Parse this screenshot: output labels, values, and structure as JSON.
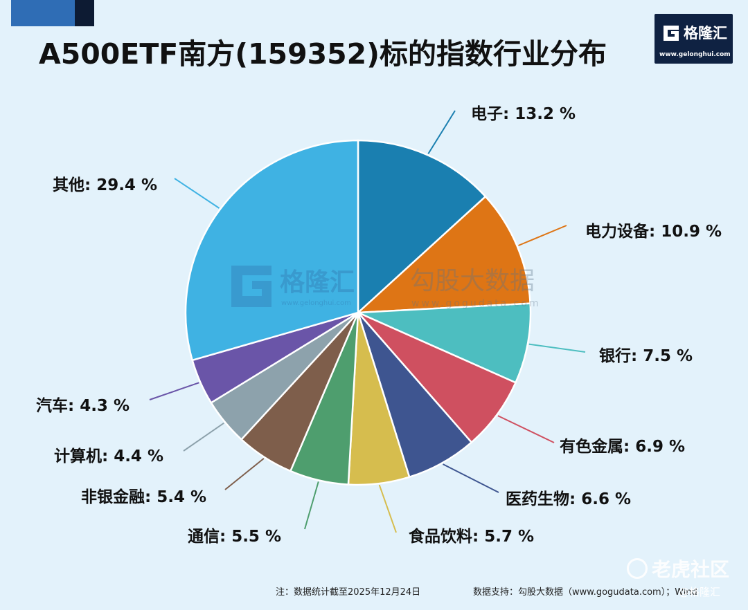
{
  "title": "A500ETF南方(159352)标的指数行业分布",
  "logo": {
    "name": "格隆汇",
    "url": "www.gelonghui.com"
  },
  "watermark": {
    "brand_a": "格隆汇",
    "brand_a_url": "www.gelonghui.com",
    "brand_b": "勾股大数据",
    "brand_b_url": "www.gogudata.com"
  },
  "footer": {
    "note": "注：数据统计截至2025年12月24日",
    "source": "数据支持：勾股大数据（www.gogudata.com）；Wind"
  },
  "badge": {
    "tiger": "老虎社区",
    "stamp": "@格隆汇"
  },
  "chart_data": {
    "type": "pie",
    "slices": [
      {
        "label": "电子",
        "value": 13.2,
        "display": "电子: 13.2 %",
        "color": "#1a7fb0"
      },
      {
        "label": "电力设备",
        "value": 10.9,
        "display": "电力设备: 10.9 %",
        "color": "#de7515"
      },
      {
        "label": "银行",
        "value": 7.5,
        "display": "银行: 7.5 %",
        "color": "#4dbec0"
      },
      {
        "label": "有色金属",
        "value": 6.9,
        "display": "有色金属: 6.9 %",
        "color": "#cf5060"
      },
      {
        "label": "医药生物",
        "value": 6.6,
        "display": "医药生物: 6.6 %",
        "color": "#3e5590"
      },
      {
        "label": "食品饮料",
        "value": 5.7,
        "display": "食品饮料: 5.7 %",
        "color": "#d6bd4e"
      },
      {
        "label": "通信",
        "value": 5.5,
        "display": "通信: 5.5 %",
        "color": "#4e9e6e"
      },
      {
        "label": "非银金融",
        "value": 5.4,
        "display": "非银金融: 5.4 %",
        "color": "#7e5e4b"
      },
      {
        "label": "计算机",
        "value": 4.4,
        "display": "计算机: 4.4 %",
        "color": "#8da2ac"
      },
      {
        "label": "汽车",
        "value": 4.3,
        "display": "汽车: 4.3 %",
        "color": "#6a55a8"
      },
      {
        "label": "其他",
        "value": 29.4,
        "display": "其他: 29.4 %",
        "color": "#3fb2e3"
      }
    ],
    "start_angle": "12 o'clock",
    "direction": "clockwise",
    "unit": "%"
  }
}
